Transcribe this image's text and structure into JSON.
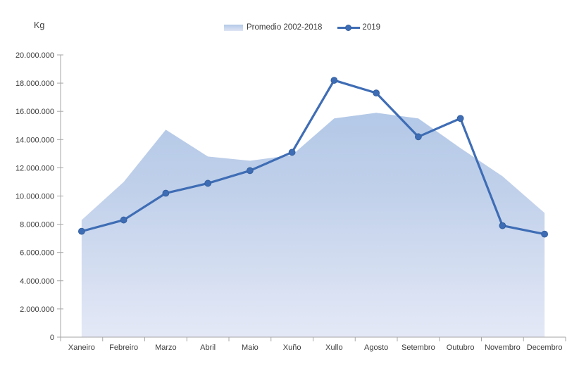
{
  "unit_label": "Kg",
  "legend": {
    "items": [
      {
        "label": "Promedio 2002-2018",
        "marker": "area-swatch"
      },
      {
        "label": "2019",
        "marker": "line-dot"
      }
    ]
  },
  "chart_data": {
    "type": "area+line",
    "title": "",
    "ylabel": "Kg",
    "xlabel": "",
    "grid": false,
    "legend_position": "top-center",
    "categories": [
      "Xaneiro",
      "Febreiro",
      "Marzo",
      "Abril",
      "Maio",
      "Xuño",
      "Xullo",
      "Agosto",
      "Setembro",
      "Outubro",
      "Novembro",
      "Decembro"
    ],
    "series": [
      {
        "name": "Promedio 2002-2018",
        "type": "area",
        "color_top": "#b2c8e7",
        "color_bottom": "#e6eaf7",
        "values": [
          8300000,
          11000000,
          14700000,
          12800000,
          12500000,
          12900000,
          15500000,
          15900000,
          15500000,
          13400000,
          11400000,
          8800000
        ]
      },
      {
        "name": "2019",
        "type": "line",
        "color": "#3f6db5",
        "marker_edge_color": "#34609f",
        "values": [
          7500000,
          8300000,
          10200000,
          10900000,
          11800000,
          13100000,
          18200000,
          17300000,
          14200000,
          15500000,
          7900000,
          7300000
        ]
      }
    ],
    "ylim": [
      0,
      20000000
    ],
    "ytick_step": 2000000,
    "yticklabels": [
      "0",
      "2.000.000",
      "4.000.000",
      "6.000.000",
      "8.000.000",
      "10.000.000",
      "12.000.000",
      "14.000.000",
      "16.000.000",
      "18.000.000",
      "20.000.000"
    ],
    "axis_color": "#a6a6a6"
  }
}
